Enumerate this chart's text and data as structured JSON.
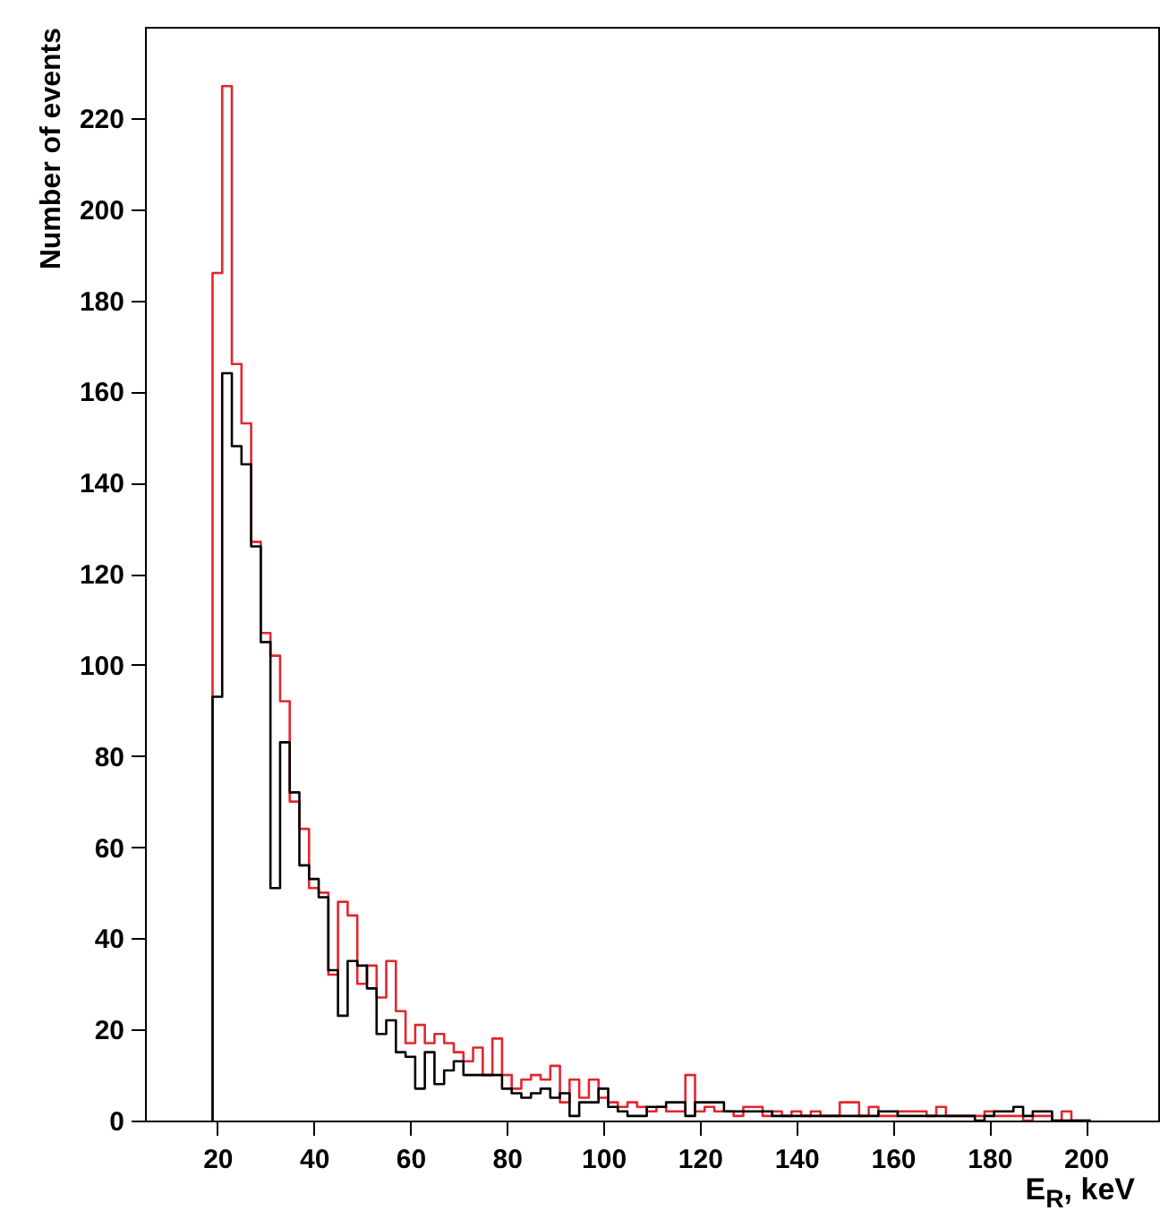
{
  "chart_data": {
    "type": "histogram",
    "xlabel": "E$_{R}$, keV",
    "ylabel": "Number of events",
    "xlim": [
      5,
      215
    ],
    "ylim": [
      0,
      240
    ],
    "xticks": [
      20,
      40,
      60,
      80,
      100,
      120,
      140,
      160,
      180,
      200
    ],
    "yticks": [
      0,
      20,
      40,
      60,
      80,
      100,
      120,
      140,
      160,
      180,
      200,
      220
    ],
    "grid": false,
    "bins": [
      19,
      21,
      23,
      25,
      27,
      29,
      31,
      33,
      35,
      37,
      39,
      41,
      43,
      45,
      47,
      49,
      51,
      53,
      55,
      57,
      59,
      61,
      63,
      65,
      67,
      69,
      71,
      73,
      75,
      77,
      79,
      81,
      83,
      85,
      87,
      89,
      91,
      93,
      95,
      97,
      99,
      101,
      103,
      105,
      107,
      109,
      111,
      113,
      115,
      117,
      119,
      121,
      123,
      125,
      127,
      129,
      131,
      133,
      135,
      137,
      139,
      141,
      143,
      145,
      147,
      149,
      151,
      153,
      155,
      157,
      159,
      161,
      163,
      165,
      167,
      169,
      171,
      173,
      175,
      177,
      179,
      181,
      183,
      185,
      187,
      189,
      191,
      193,
      195,
      197,
      199,
      201
    ],
    "series": [
      {
        "color": "#e3262f",
        "values": [
          186,
          227,
          166,
          153,
          127,
          107,
          102,
          92,
          70,
          64,
          51,
          50,
          32,
          48,
          45,
          30,
          34,
          27,
          35,
          24,
          17,
          21,
          17,
          19,
          17,
          15,
          13,
          16,
          10,
          18,
          10,
          7,
          9,
          10,
          9,
          12,
          4,
          9,
          5,
          9,
          5,
          4,
          3,
          4,
          3,
          2,
          3,
          2,
          2,
          10,
          2,
          3,
          2,
          2,
          1,
          3,
          3,
          1,
          2,
          1,
          2,
          1,
          2,
          1,
          1,
          4,
          4,
          1,
          3,
          1,
          1,
          2,
          2,
          2,
          1,
          3,
          1,
          1,
          1,
          1,
          2,
          1,
          1,
          1,
          0,
          1,
          1,
          0,
          2,
          0,
          0
        ]
      },
      {
        "color": "#000000",
        "values": [
          93,
          164,
          148,
          144,
          126,
          105,
          51,
          83,
          72,
          56,
          53,
          49,
          33,
          23,
          35,
          34,
          29,
          19,
          22,
          15,
          14,
          7,
          15,
          8,
          11,
          13,
          10,
          10,
          10,
          10,
          7,
          6,
          5,
          6,
          7,
          5,
          6,
          1,
          4,
          4,
          7,
          3,
          2,
          1,
          1,
          3,
          3,
          4,
          4,
          1,
          4,
          4,
          4,
          2,
          2,
          2,
          2,
          2,
          1,
          1,
          1,
          1,
          1,
          1,
          1,
          1,
          1,
          1,
          1,
          2,
          2,
          1,
          1,
          1,
          1,
          1,
          1,
          1,
          1,
          0,
          1,
          2,
          2,
          3,
          1,
          2,
          2,
          0,
          0,
          0,
          0
        ]
      }
    ]
  }
}
